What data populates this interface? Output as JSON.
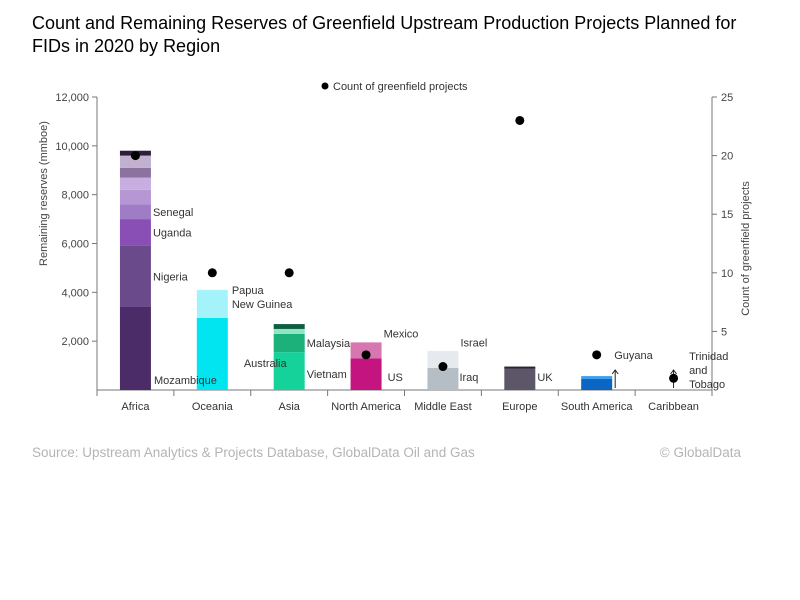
{
  "chart_data": {
    "type": "bar",
    "title": "Count and Remaining Reserves of Greenfield Upstream Production Projects Planned for FIDs in 2020 by Region",
    "ylabel": "Remaining reserves (mmboe)",
    "y2label": "Count of greenfield projects",
    "ylim": [
      0,
      12000
    ],
    "y2lim": [
      0,
      25
    ],
    "yticks": [
      "12,000",
      "10,000",
      "8,000",
      "6,000",
      "4,000",
      "2,000"
    ],
    "y2ticks": [
      "25",
      "20",
      "15",
      "10",
      "5"
    ],
    "legend": {
      "label": "Count of greenfield projects",
      "placement": "top"
    },
    "grid": false,
    "categories": [
      "Africa",
      "Oceania",
      "Asia",
      "North America",
      "Middle East",
      "Europe",
      "South America",
      "Caribbean"
    ],
    "stacks": [
      {
        "category": "Africa",
        "segments": [
          {
            "label": "Mozambique",
            "value": 3400,
            "color": "#4b2b68"
          },
          {
            "label": "Nigeria",
            "value": 2500,
            "color": "#6b4a8c"
          },
          {
            "label": "Uganda",
            "value": 1100,
            "color": "#8a4fb5"
          },
          {
            "label": "Senegal",
            "value": 600,
            "color": "#a07cc7"
          },
          {
            "label": "",
            "value": 600,
            "color": "#b497d3"
          },
          {
            "label": "",
            "value": 500,
            "color": "#c6afe0"
          },
          {
            "label": "",
            "value": 400,
            "color": "#8c729f"
          },
          {
            "label": "",
            "value": 500,
            "color": "#c2b0cf"
          },
          {
            "label": "",
            "value": 200,
            "color": "#2e1e3e"
          }
        ]
      },
      {
        "category": "Oceania",
        "segments": [
          {
            "label": "Australia",
            "value": 2950,
            "color": "#00e5f0"
          },
          {
            "label": "Papua New Guinea",
            "value": 1150,
            "color": "#a4f3fa"
          }
        ]
      },
      {
        "category": "Asia",
        "segments": [
          {
            "label": "Vietnam",
            "value": 1550,
            "color": "#15d29a"
          },
          {
            "label": "Malaysia",
            "value": 750,
            "color": "#1cb07a"
          },
          {
            "label": "",
            "value": 200,
            "color": "#8fe6c4"
          },
          {
            "label": "",
            "value": 200,
            "color": "#0f5e43"
          }
        ]
      },
      {
        "category": "North America",
        "segments": [
          {
            "label": "US",
            "value": 1300,
            "color": "#c3147f"
          },
          {
            "label": "Mexico",
            "value": 650,
            "color": "#d777b0"
          }
        ]
      },
      {
        "category": "Middle East",
        "segments": [
          {
            "label": "Iraq",
            "value": 900,
            "color": "#b5bdc5"
          },
          {
            "label": "Israel",
            "value": 700,
            "color": "#e6eaee"
          }
        ]
      },
      {
        "category": "Europe",
        "segments": [
          {
            "label": "UK",
            "value": 880,
            "color": "#5d5669"
          },
          {
            "label": "",
            "value": 80,
            "color": "#2b2433"
          }
        ]
      },
      {
        "category": "South America",
        "segments": [
          {
            "label": "Guyana",
            "value": 450,
            "color": "#0a66c2"
          },
          {
            "label": "",
            "value": 120,
            "color": "#3da0ea"
          }
        ]
      },
      {
        "category": "Caribbean",
        "segments": [
          {
            "label": "Trinidad and Tobago",
            "value": 0,
            "color": "#333333"
          }
        ]
      }
    ],
    "counts": [
      {
        "category": "Africa",
        "value": 20
      },
      {
        "category": "Oceania",
        "value": 10
      },
      {
        "category": "Asia",
        "value": 10
      },
      {
        "category": "North America",
        "value": 3
      },
      {
        "category": "Middle East",
        "value": 2
      },
      {
        "category": "Europe",
        "value": 23
      },
      {
        "category": "South America",
        "value": 3
      },
      {
        "category": "Caribbean",
        "value": 1
      }
    ]
  },
  "footer": {
    "source": "Source: Upstream Analytics & Projects Database, GlobalData Oil and Gas",
    "copyright": "© GlobalData"
  }
}
